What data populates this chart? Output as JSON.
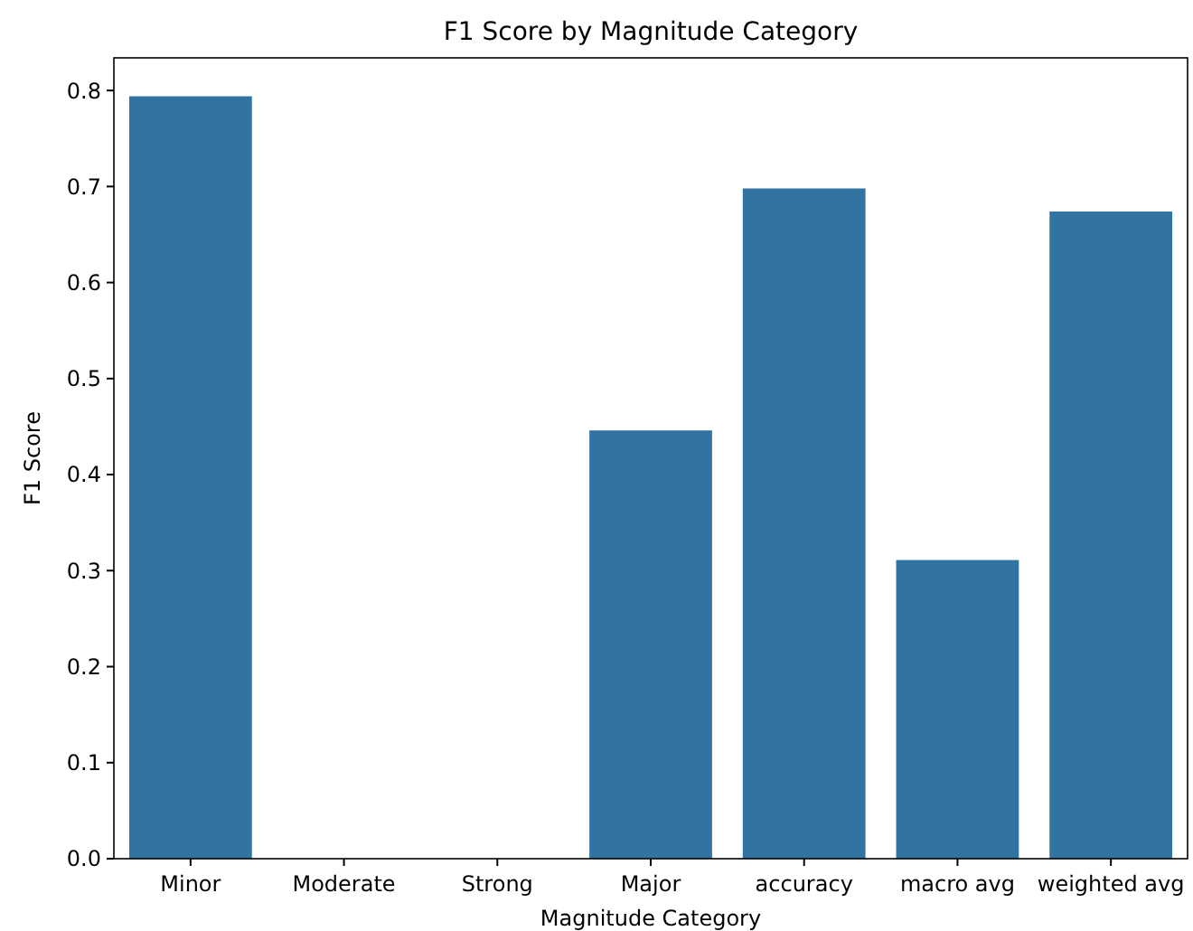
{
  "chart_data": {
    "type": "bar",
    "title": "F1 Score by Magnitude Category",
    "xlabel": "Magnitude Category",
    "ylabel": "F1 Score",
    "categories": [
      "Minor",
      "Moderate",
      "Strong",
      "Major",
      "accuracy",
      "macro avg",
      "weighted avg"
    ],
    "values": [
      0.794,
      0,
      0,
      0.446,
      0.698,
      0.311,
      0.674
    ],
    "color": "#3274a1",
    "ylim": [
      0,
      0.834
    ],
    "yticks": [
      {
        "value": 0,
        "label": "0.0"
      },
      {
        "value": 0.1,
        "label": "0.1"
      },
      {
        "value": 0.2,
        "label": "0.2"
      },
      {
        "value": 0.3,
        "label": "0.3"
      },
      {
        "value": 0.4,
        "label": "0.4"
      },
      {
        "value": 0.5,
        "label": "0.5"
      },
      {
        "value": 0.6,
        "label": "0.6"
      },
      {
        "value": 0.7,
        "label": "0.7"
      },
      {
        "value": 0.8,
        "label": "0.8"
      }
    ]
  }
}
